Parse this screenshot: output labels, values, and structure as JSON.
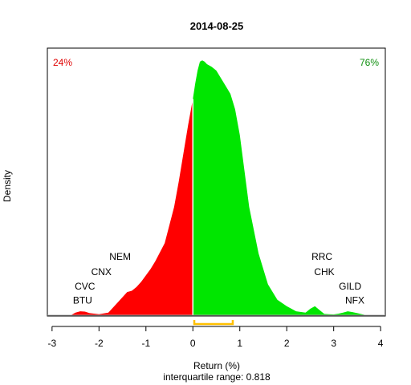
{
  "chart_data": {
    "type": "area",
    "title": "2014-08-25",
    "xlabel": "Return (%)",
    "ylabel": "Density",
    "subtitle": "interquartile range: 0.818",
    "xlim": [
      -3.1,
      4.1
    ],
    "ylim": [
      0,
      1.0
    ],
    "x_ticks": [
      "-3",
      "-2",
      "-1",
      "0",
      "1",
      "2",
      "3",
      "4"
    ],
    "x_tick_values": [
      -3,
      -2,
      -1,
      0,
      1,
      2,
      3,
      4
    ],
    "negative_share": "24%",
    "positive_share": "76%",
    "colors": {
      "negative": "#ff0000",
      "positive": "#00e600",
      "iqr": "#ffc000",
      "neg_text": "#e00000",
      "pos_text": "#109010"
    },
    "iqr": [
      0.03,
      0.85
    ],
    "density": {
      "x": [
        -2.6,
        -2.5,
        -2.4,
        -2.3,
        -2.2,
        -2.0,
        -1.8,
        -1.6,
        -1.4,
        -1.3,
        -1.2,
        -1.1,
        -1.0,
        -0.9,
        -0.8,
        -0.6,
        -0.4,
        -0.3,
        -0.2,
        -0.1,
        0.0,
        0.05,
        0.1,
        0.15,
        0.2,
        0.25,
        0.3,
        0.4,
        0.5,
        0.6,
        0.7,
        0.8,
        0.9,
        1.0,
        1.1,
        1.2,
        1.4,
        1.6,
        1.8,
        2.0,
        2.2,
        2.4,
        2.5,
        2.6,
        2.7,
        2.8,
        2.9,
        3.0,
        3.1,
        3.2,
        3.3,
        3.4,
        3.5,
        3.6,
        3.7
      ],
      "y": [
        0.0,
        0.01,
        0.015,
        0.014,
        0.008,
        0.004,
        0.01,
        0.05,
        0.09,
        0.095,
        0.11,
        0.13,
        0.155,
        0.18,
        0.21,
        0.28,
        0.42,
        0.52,
        0.63,
        0.74,
        0.84,
        0.9,
        0.95,
        0.985,
        0.99,
        0.985,
        0.975,
        0.965,
        0.95,
        0.92,
        0.89,
        0.86,
        0.8,
        0.7,
        0.56,
        0.42,
        0.24,
        0.12,
        0.06,
        0.035,
        0.015,
        0.01,
        0.025,
        0.035,
        0.02,
        0.005,
        0.004,
        0.003,
        0.006,
        0.01,
        0.015,
        0.012,
        0.008,
        0.004,
        0.0
      ]
    },
    "annotations": [
      {
        "text": "NEM",
        "x": -1.55,
        "y": 0.215
      },
      {
        "text": "CNX",
        "x": -1.95,
        "y": 0.155
      },
      {
        "text": "CVC",
        "x": -2.3,
        "y": 0.1
      },
      {
        "text": "BTU",
        "x": -2.35,
        "y": 0.045
      },
      {
        "text": "RRC",
        "x": 2.75,
        "y": 0.215
      },
      {
        "text": "CHK",
        "x": 2.8,
        "y": 0.155
      },
      {
        "text": "GILD",
        "x": 3.35,
        "y": 0.1
      },
      {
        "text": "NFX",
        "x": 3.45,
        "y": 0.045
      }
    ],
    "grid": false
  }
}
